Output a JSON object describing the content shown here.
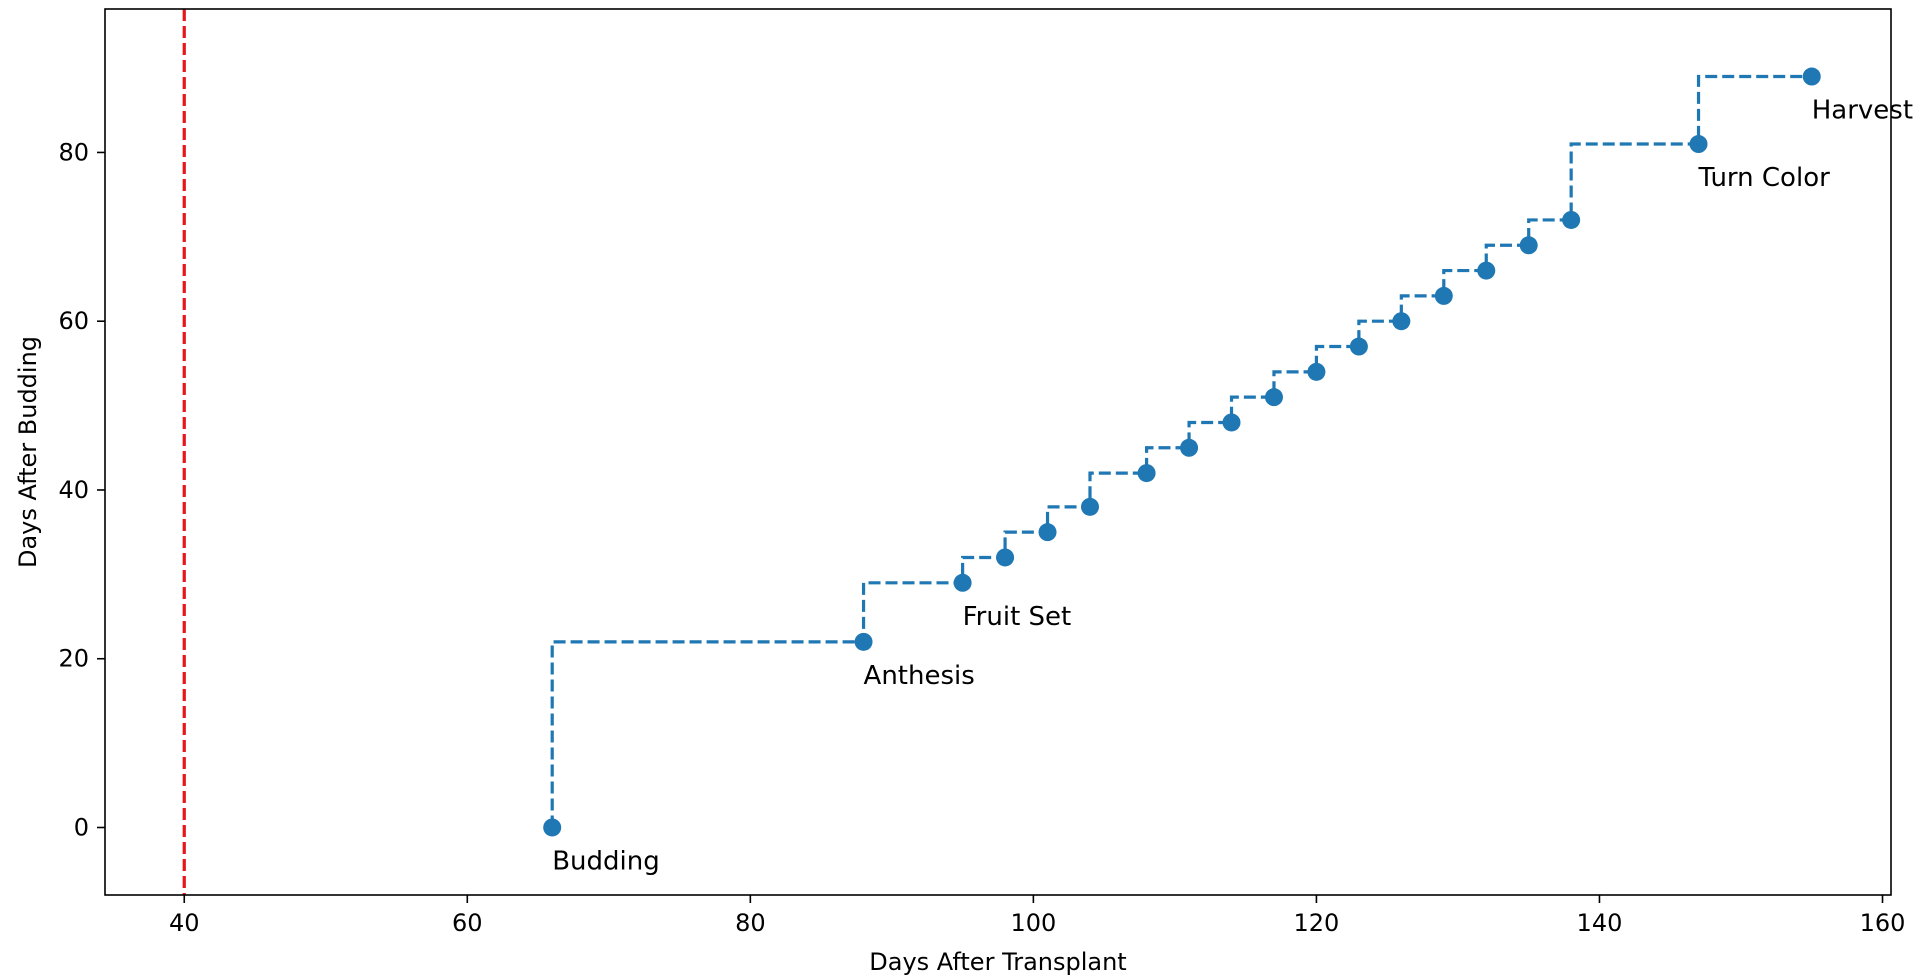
{
  "chart_data": {
    "type": "scatter",
    "title": "",
    "xlabel": "Days After Transplant",
    "ylabel": "Days After Budding",
    "xlim": [
      34.4,
      160.6
    ],
    "ylim": [
      -8.0,
      97.0
    ],
    "x_ticks": [
      40,
      60,
      80,
      100,
      120,
      140,
      160
    ],
    "y_ticks": [
      0,
      20,
      40,
      60,
      80
    ],
    "grid": false,
    "series": [
      {
        "style": "step-post dashed line with circle markers",
        "color": "#1f77b4",
        "x": [
          66,
          88,
          95,
          98,
          101,
          104,
          108,
          111,
          114,
          117,
          120,
          123,
          126,
          129,
          132,
          135,
          138,
          147,
          155
        ],
        "y": [
          0,
          22,
          29,
          32,
          35,
          38,
          42,
          45,
          48,
          51,
          54,
          57,
          60,
          63,
          66,
          69,
          72,
          81,
          89
        ]
      }
    ],
    "reference_lines": [
      {
        "orientation": "vertical",
        "x": 40,
        "color": "#e8161a",
        "style": "dashed"
      }
    ],
    "annotations": [
      {
        "text": "Budding",
        "x": 66,
        "y": 0
      },
      {
        "text": "Anthesis",
        "x": 88,
        "y": 22
      },
      {
        "text": "Fruit Set",
        "x": 95,
        "y": 29
      },
      {
        "text": "Turn Color",
        "x": 147,
        "y": 81
      },
      {
        "text": "Harvest",
        "x": 155,
        "y": 89
      }
    ]
  }
}
